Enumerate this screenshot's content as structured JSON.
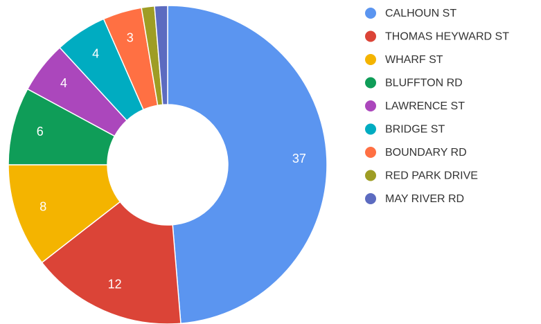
{
  "chart_data": {
    "type": "donut",
    "categories": [
      "CALHOUN ST",
      "THOMAS HEYWARD ST",
      "WHARF ST",
      "BLUFFTON RD",
      "LAWRENCE ST",
      "BRIDGE ST",
      "BOUNDARY RD",
      "RED PARK DRIVE",
      "MAY RIVER RD"
    ],
    "values": [
      37,
      12,
      8,
      6,
      4,
      4,
      3,
      1,
      1
    ],
    "colors": [
      "#5b95f0",
      "#db4437",
      "#f4b400",
      "#0f9d58",
      "#ab47bc",
      "#00acc1",
      "#ff7043",
      "#9e9d24",
      "#5c6bc0"
    ],
    "labeled": [
      true,
      true,
      true,
      true,
      true,
      true,
      true,
      false,
      false
    ],
    "legend": "right"
  }
}
